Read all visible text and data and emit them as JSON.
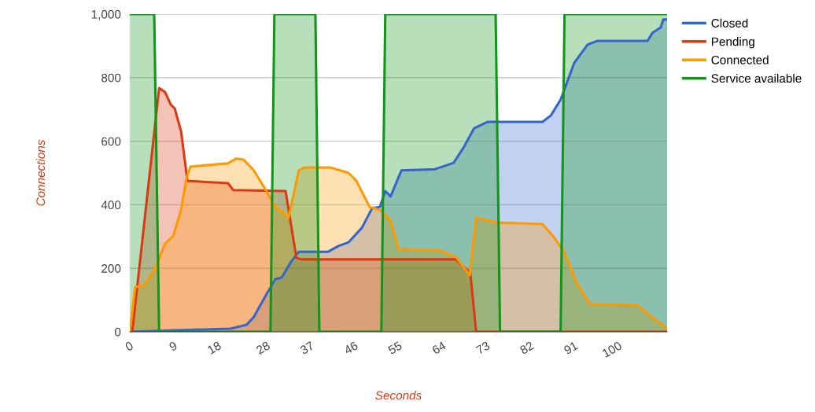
{
  "chart_data": {
    "type": "area",
    "xlabel": "Seconds",
    "ylabel": "Connections",
    "xlim": [
      0,
      110
    ],
    "xticks": [
      0,
      9,
      18,
      28,
      37,
      46,
      55,
      64,
      73,
      82,
      91,
      100
    ],
    "ylim": [
      0,
      1000
    ],
    "yticks": [
      0,
      200,
      400,
      600,
      800,
      {
        "value": 1000,
        "label": "1,000"
      }
    ],
    "grid": "y",
    "legend": "top right",
    "series": [
      {
        "name": "Closed",
        "color": "#3366cc",
        "x": [
          0,
          20.6,
          23.9,
          25.4,
          27.7,
          29.8,
          31.1,
          33,
          34.6,
          40.6,
          42.7,
          44.8,
          47.5,
          49.6,
          51.2,
          52.3,
          53.4,
          55.6,
          62.5,
          66.3,
          68.4,
          70.5,
          73.3,
          84.5,
          86.2,
          88.2,
          91,
          93.7,
          95.8,
          106,
          107,
          108.7,
          109.2,
          110
        ],
        "values": [
          0,
          10,
          22,
          47,
          111,
          166,
          171,
          220,
          252,
          252,
          270,
          282,
          327,
          389,
          393,
          443,
          426,
          508,
          512,
          532,
          582,
          641,
          661,
          661,
          681,
          731,
          847,
          904,
          916,
          916,
          941,
          958,
          983,
          983
        ]
      },
      {
        "name": "Pending",
        "color": "#dc3912",
        "x": [
          0,
          0.5,
          6,
          7.2,
          8.4,
          9.2,
          10.5,
          11.8,
          20.1,
          21.2,
          31.9,
          34.1,
          35.1,
          66.8,
          68.4,
          69.7,
          70.9,
          110
        ],
        "values": [
          0,
          0,
          767,
          755,
          715,
          703,
          631,
          475,
          468,
          446,
          443,
          233,
          228,
          228,
          203,
          186,
          0,
          0
        ]
      },
      {
        "name": "Connected",
        "color": "#ff9900",
        "x": [
          0,
          1.1,
          2.9,
          5.1,
          7.2,
          8.9,
          10.5,
          11.6,
          12.4,
          20.1,
          21.7,
          23.3,
          25.4,
          27.7,
          29.8,
          32.5,
          34.6,
          35.7,
          41.1,
          44.8,
          46.4,
          49.1,
          51.2,
          53.4,
          55,
          63.1,
          66.8,
          69.6,
          70.9,
          74.9,
          84.5,
          86.6,
          88.9,
          91.5,
          94.2,
          103.9,
          107.6,
          110
        ],
        "values": [
          0,
          141,
          146,
          196,
          277,
          302,
          384,
          483,
          520,
          530,
          545,
          542,
          508,
          450,
          393,
          359,
          508,
          517,
          517,
          500,
          475,
          393,
          384,
          351,
          260,
          257,
          235,
          178,
          359,
          344,
          339,
          302,
          252,
          153,
          87,
          84,
          37,
          10
        ]
      },
      {
        "name": "Service available",
        "color": "#109618",
        "x": [
          0,
          5,
          6,
          28.8,
          29.6,
          38,
          38.8,
          51.5,
          52.3,
          74.9,
          75.8,
          88.2,
          89,
          110
        ],
        "values": [
          1000,
          1000,
          0,
          0,
          1000,
          1000,
          0,
          0,
          1000,
          1000,
          0,
          0,
          1000,
          1000
        ]
      }
    ]
  }
}
